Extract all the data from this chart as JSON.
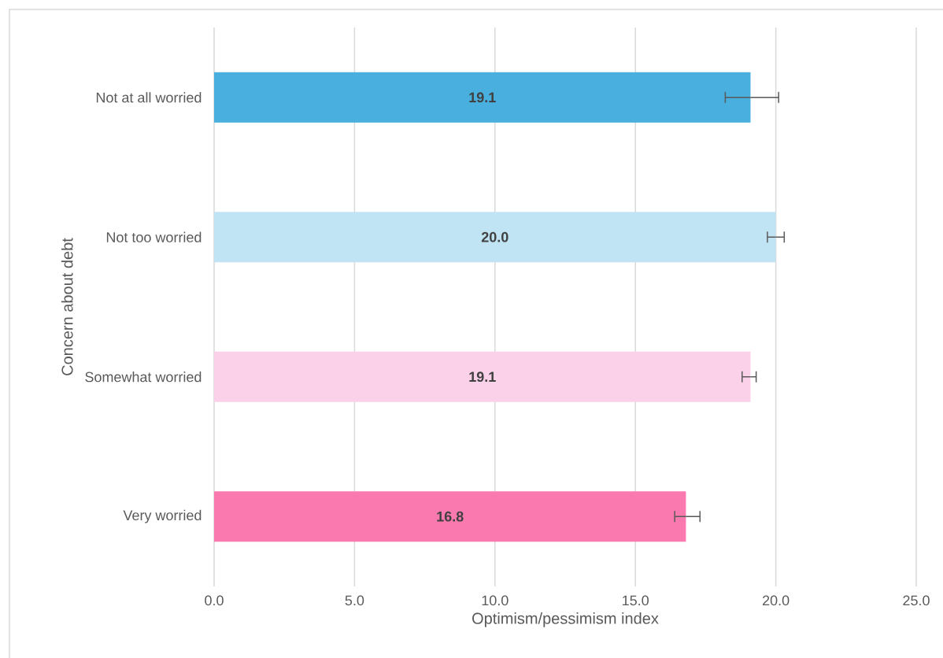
{
  "chart_data": {
    "type": "bar",
    "orientation": "horizontal",
    "xlabel": "Optimism/pessimism index",
    "ylabel": "Concern about debt",
    "categories": [
      "Not at all worried",
      "Not too worried",
      "Somewhat worried",
      "Very worried"
    ],
    "values": [
      19.1,
      20.0,
      19.1,
      16.8
    ],
    "value_labels": [
      "19.1",
      "20.0",
      "19.1",
      "16.8"
    ],
    "colors": [
      "#48afde",
      "#c1e4f4",
      "#fbd1ea",
      "#fa7ab0"
    ],
    "errors": [
      [
        18.2,
        20.1
      ],
      [
        19.7,
        20.3
      ],
      [
        18.8,
        19.3
      ],
      [
        16.4,
        17.3
      ]
    ],
    "xlim": [
      0,
      25
    ],
    "xticks": [
      {
        "value": 0,
        "label": "0.0"
      },
      {
        "value": 5,
        "label": "5.0"
      },
      {
        "value": 10,
        "label": "10.0"
      },
      {
        "value": 15,
        "label": "15.0"
      },
      {
        "value": 20,
        "label": "20.0"
      },
      {
        "value": 25,
        "label": "25.0"
      }
    ],
    "grid": "x"
  }
}
